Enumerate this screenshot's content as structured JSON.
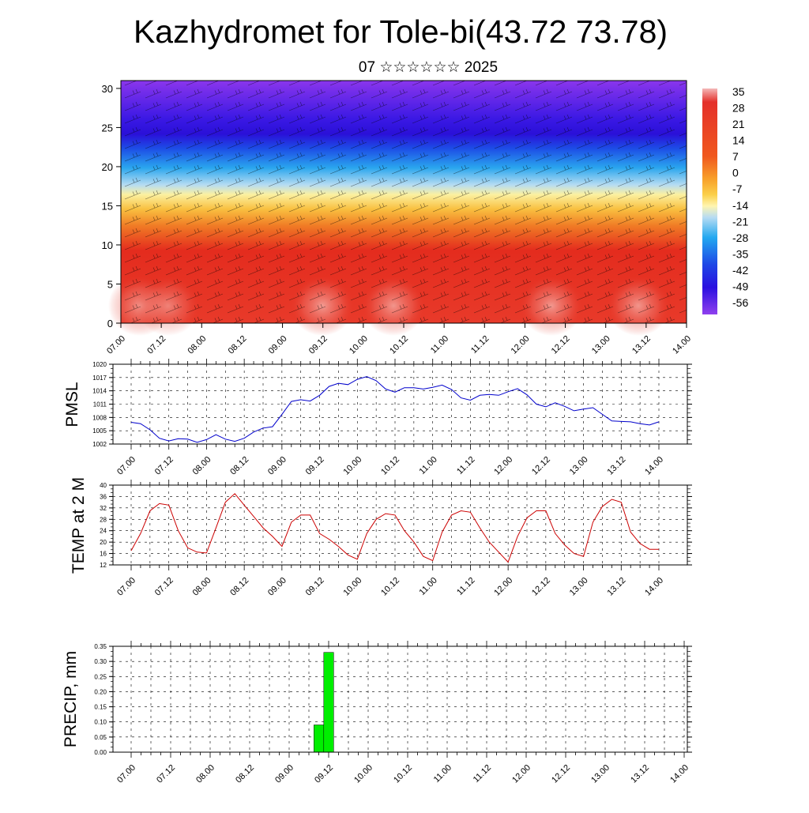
{
  "title": "Kazhydromet for Tole-bi(43.72 73.78)",
  "subtitle": "07 ☆☆☆☆☆☆ 2025",
  "colors": {
    "pmsl_line": "#0000cc",
    "temp_line": "#cc0000",
    "precip_bar": "#00ee00",
    "axis": "#000000",
    "grid": "#000000"
  },
  "chart_data": [
    {
      "type": "heatmap",
      "name": "cross-section",
      "x_ticks": [
        "07.00",
        "07.12",
        "08.00",
        "08.12",
        "09.00",
        "09.12",
        "10.00",
        "10.12",
        "11.00",
        "11.12",
        "12.00",
        "12.12",
        "13.00",
        "13.12",
        "14.00"
      ],
      "y_ticks": [
        "0",
        "5",
        "10",
        "15",
        "20",
        "25",
        "30"
      ],
      "ylim": [
        0,
        31
      ],
      "colorbar": {
        "labels": [
          "35",
          "28",
          "21",
          "14",
          "7",
          "0",
          "-7",
          "-14",
          "-21",
          "-28",
          "-35",
          "-42",
          "-49",
          "-56"
        ]
      },
      "overlay": "wind barbs",
      "grid": false
    },
    {
      "type": "line",
      "name": "pmsl",
      "ylabel": "PMSL",
      "y_ticks": [
        "1020",
        "1017",
        "1014",
        "1011",
        "1008",
        "1005",
        "1002"
      ],
      "ylim": [
        1002,
        1020
      ],
      "x_ticks": [
        "07.00",
        "07.12",
        "08.00",
        "08.12",
        "09.00",
        "09.12",
        "10.00",
        "10.12",
        "11.00",
        "11.12",
        "12.00",
        "12.12",
        "13.00",
        "13.12",
        "14.00"
      ],
      "x_hours": [
        0,
        3,
        6,
        9,
        12,
        15,
        18,
        21,
        24,
        27,
        30,
        33,
        36,
        39,
        42,
        45,
        48,
        51,
        54,
        57,
        60,
        63,
        66,
        69,
        72,
        75,
        78,
        81,
        84,
        87,
        90,
        93,
        96,
        99,
        102,
        105,
        108,
        111,
        114,
        117,
        120,
        123,
        126,
        129,
        132,
        135,
        138,
        141,
        144,
        147,
        150,
        153,
        156,
        159,
        162,
        165,
        168
      ],
      "values": [
        1006.9,
        1006.6,
        1005.2,
        1003.3,
        1002.7,
        1003.2,
        1003.1,
        1002.4,
        1003.0,
        1004.1,
        1003.1,
        1002.6,
        1003.3,
        1004.7,
        1005.6,
        1005.9,
        1008.7,
        1011.6,
        1012.0,
        1011.7,
        1013.0,
        1015.0,
        1015.7,
        1015.4,
        1016.6,
        1017.2,
        1016.3,
        1014.4,
        1013.7,
        1014.7,
        1014.7,
        1014.4,
        1014.8,
        1015.3,
        1014.3,
        1012.4,
        1011.9,
        1013.0,
        1013.2,
        1013.0,
        1013.8,
        1014.5,
        1013.1,
        1011.0,
        1010.4,
        1011.3,
        1010.5,
        1009.5,
        1009.9,
        1010.2,
        1008.7,
        1007.2,
        1007.1,
        1007.0,
        1006.6,
        1006.3,
        1007.0
      ],
      "grid": true
    },
    {
      "type": "line",
      "name": "temp",
      "ylabel": "TEMP at 2 M",
      "y_ticks": [
        "40",
        "36",
        "32",
        "28",
        "24",
        "20",
        "16",
        "12"
      ],
      "ylim": [
        12,
        40
      ],
      "x_ticks": [
        "07.00",
        "07.12",
        "08.00",
        "08.12",
        "09.00",
        "09.12",
        "10.00",
        "10.12",
        "11.00",
        "11.12",
        "12.00",
        "12.12",
        "13.00",
        "13.12",
        "14.00"
      ],
      "x_hours": [
        0,
        3,
        6,
        9,
        12,
        15,
        18,
        21,
        24,
        27,
        30,
        33,
        36,
        39,
        42,
        45,
        48,
        51,
        54,
        57,
        60,
        63,
        66,
        69,
        72,
        75,
        78,
        81,
        84,
        87,
        90,
        93,
        96,
        99,
        102,
        105,
        108,
        111,
        114,
        117,
        120,
        123,
        126,
        129,
        132,
        135,
        138,
        141,
        144,
        147,
        150,
        153,
        156,
        159,
        162,
        165,
        168
      ],
      "values": [
        17,
        23,
        31,
        33.5,
        33,
        24,
        18,
        16.5,
        16.2,
        25,
        34,
        37,
        33,
        29,
        25,
        22,
        18.5,
        27,
        29.5,
        29.5,
        23,
        21,
        18.5,
        15.5,
        14,
        23,
        28,
        30,
        29.5,
        24,
        20,
        15,
        13.5,
        23.5,
        29.5,
        31,
        30.5,
        25,
        20,
        16.5,
        13,
        22,
        28.5,
        31,
        31,
        23,
        19,
        16,
        15,
        27,
        32.5,
        35,
        34,
        23.5,
        19.5,
        17.5,
        17.5
      ],
      "grid": true
    },
    {
      "type": "bar",
      "name": "precip",
      "ylabel": "PRECIP, mm",
      "y_ticks": [
        "0.35",
        "0.30",
        "0.25",
        "0.20",
        "0.15",
        "0.10",
        "0.05",
        "0.00"
      ],
      "ylim": [
        0,
        0.35
      ],
      "x_ticks": [
        "07.00",
        "07.12",
        "08.00",
        "08.12",
        "09.00",
        "09.12",
        "10.00",
        "10.12",
        "11.00",
        "11.12",
        "12.00",
        "12.12",
        "13.00",
        "13.12",
        "14.00"
      ],
      "bars": [
        {
          "x_hour": 57,
          "value": 0.09
        },
        {
          "x_hour": 60,
          "value": 0.33
        }
      ],
      "grid": true
    }
  ]
}
